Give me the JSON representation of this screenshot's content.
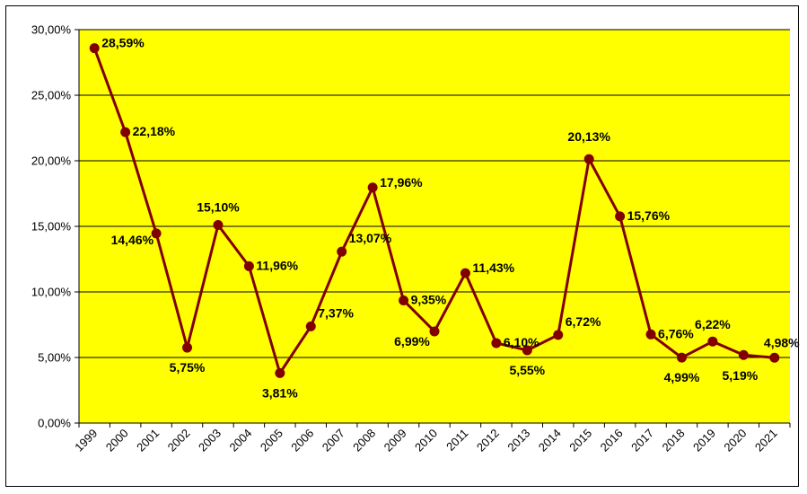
{
  "chart_data": {
    "type": "line",
    "categories": [
      "1999",
      "2000",
      "2001",
      "2002",
      "2003",
      "2004",
      "2005",
      "2006",
      "2007",
      "2008",
      "2009",
      "2010",
      "2011",
      "2012",
      "2013",
      "2014",
      "2015",
      "2016",
      "2017",
      "2018",
      "2019",
      "2020",
      "2021"
    ],
    "series": [
      {
        "values": [
          28.59,
          22.18,
          14.46,
          5.75,
          15.1,
          11.96,
          3.81,
          7.37,
          13.07,
          17.96,
          9.35,
          6.99,
          11.43,
          6.1,
          5.55,
          6.72,
          20.13,
          15.76,
          6.76,
          4.99,
          6.22,
          5.19,
          4.98
        ],
        "labels": [
          "28,59%",
          "22,18%",
          "14,46%",
          "5,75%",
          "15,10%",
          "11,96%",
          "3,81%",
          "7,37%",
          "13,07%",
          "17,96%",
          "9,35%",
          "6,99%",
          "11,43%",
          "6,10%",
          "5,55%",
          "6,72%",
          "20,13%",
          "15,76%",
          "6,76%",
          "4,99%",
          "6,22%",
          "5,19%",
          "4,98%"
        ]
      }
    ],
    "y_ticks": [
      "0,00%",
      "5,00%",
      "10,00%",
      "15,00%",
      "20,00%",
      "25,00%",
      "30,00%"
    ],
    "ylim": [
      0,
      30
    ],
    "grid": true,
    "colors": {
      "plot_background": "#FFFF00",
      "line": "#800000",
      "grid": "#000000"
    }
  }
}
